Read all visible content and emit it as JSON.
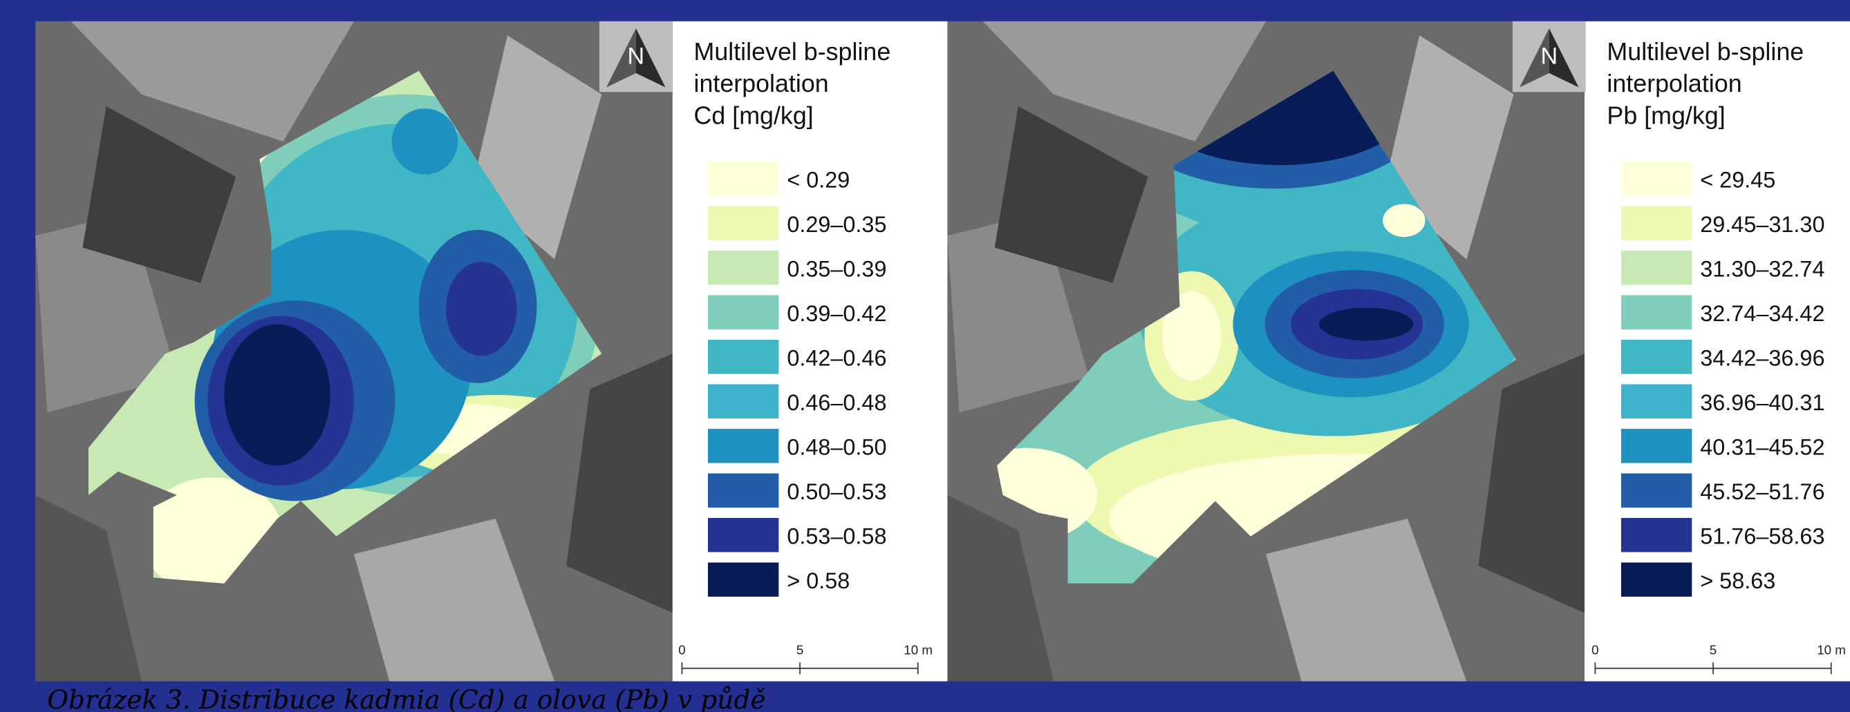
{
  "panels": [
    {
      "legend_title": [
        "Multilevel b-spline",
        "interpolation",
        "Cd [mg/kg]"
      ],
      "legend": [
        {
          "label": "< 0.29",
          "color": "#ffffd9"
        },
        {
          "label": "0.29–0.35",
          "color": "#edf8b1"
        },
        {
          "label": "0.35–0.39",
          "color": "#c7e9b4"
        },
        {
          "label": "0.39–0.42",
          "color": "#7fcdbb"
        },
        {
          "label": "0.42–0.46",
          "color": "#41b6c4"
        },
        {
          "label": "0.46–0.48",
          "color": "#3db3cc"
        },
        {
          "label": "0.48–0.50",
          "color": "#1d91c0"
        },
        {
          "label": "0.50–0.53",
          "color": "#225ea8"
        },
        {
          "label": "0.53–0.58",
          "color": "#253494"
        },
        {
          "label": "> 0.58",
          "color": "#081d58"
        }
      ],
      "north": "N",
      "scale_labels": [
        "0",
        "5",
        "10 m"
      ]
    },
    {
      "legend_title": [
        "Multilevel b-spline",
        "interpolation",
        "Pb [mg/kg]"
      ],
      "legend": [
        {
          "label": "< 29.45",
          "color": "#ffffd9"
        },
        {
          "label": "29.45–31.30",
          "color": "#edf8b1"
        },
        {
          "label": "31.30–32.74",
          "color": "#c7e9b4"
        },
        {
          "label": "32.74–34.42",
          "color": "#7fcdbb"
        },
        {
          "label": "34.42–36.96",
          "color": "#41b6c4"
        },
        {
          "label": "36.96–40.31",
          "color": "#3db3cc"
        },
        {
          "label": "40.31–45.52",
          "color": "#1d91c0"
        },
        {
          "label": "45.52–51.76",
          "color": "#225ea8"
        },
        {
          "label": "51.76–58.63",
          "color": "#253494"
        },
        {
          "label": "> 58.63",
          "color": "#081d58"
        }
      ],
      "north": "N",
      "scale_labels": [
        "0",
        "5",
        "10 m"
      ]
    }
  ],
  "caption": "Obrázek 3. Distribuce kadmia (Cd) a olova (Pb) v půdě"
}
